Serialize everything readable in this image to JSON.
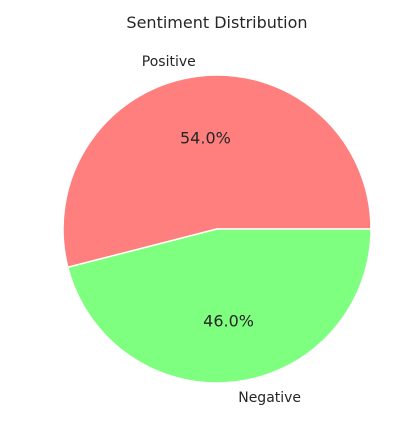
{
  "chart_data": {
    "type": "pie",
    "title": "Sentiment Distribution",
    "labels": [
      "Positive",
      "Negative"
    ],
    "values": [
      54.0,
      46.0
    ],
    "percent_labels": [
      "54.0%",
      "46.0%"
    ],
    "colors": [
      "#ff7f7f",
      "#7fff7f"
    ],
    "start_angle": "0 degrees (3 o'clock)",
    "direction": "counterclockwise",
    "legend": "none"
  }
}
